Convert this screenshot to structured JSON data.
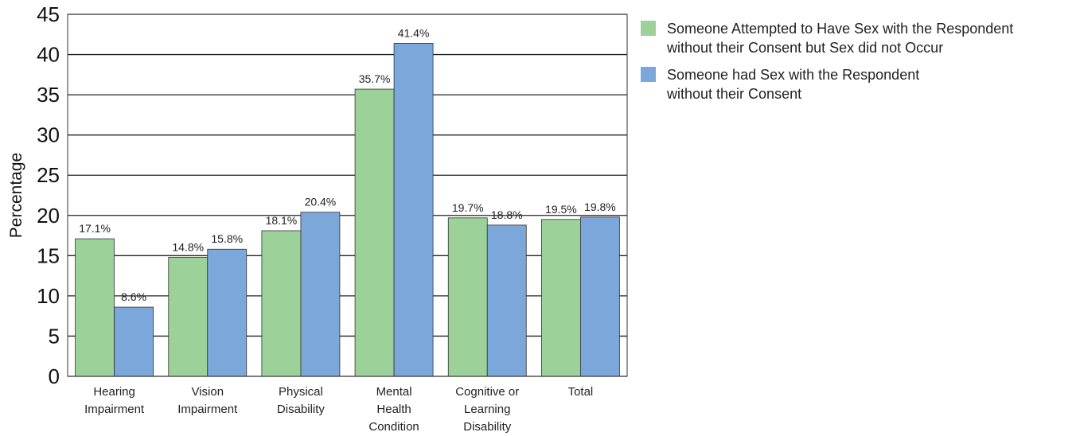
{
  "chart_data": {
    "type": "bar",
    "ylabel": "Percentage",
    "ylim": [
      0,
      45
    ],
    "yticks": [
      0,
      5,
      10,
      15,
      20,
      25,
      30,
      35,
      40,
      45
    ],
    "grid": true,
    "legend_position": "right",
    "categories": [
      [
        "Hearing",
        "Impairment"
      ],
      [
        "Vision",
        "Impairment"
      ],
      [
        "Physical",
        "Disability"
      ],
      [
        "Mental",
        "Health",
        "Condition"
      ],
      [
        "Cognitive or",
        "Learning",
        "Disability"
      ],
      [
        "Total"
      ]
    ],
    "series": [
      {
        "name": "Someone Attempted to Have Sex with the Respondent without their Consent but Sex did not Occur",
        "legend_lines": [
          "Someone Attempted to Have Sex with the Respondent",
          "without their Consent but Sex did not Occur"
        ],
        "color": "#9cd29a",
        "values": [
          17.1,
          14.8,
          18.1,
          35.7,
          19.7,
          19.5
        ],
        "labels": [
          "17.1%",
          "14.8%",
          "18.1%",
          "35.7%",
          "19.7%",
          "19.5%"
        ]
      },
      {
        "name": "Someone had Sex with the Respondent without their Consent",
        "legend_lines": [
          "Someone had Sex with the Respondent",
          "without their Consent"
        ],
        "color": "#7ba7db",
        "values": [
          8.6,
          15.8,
          20.4,
          41.4,
          18.8,
          19.8
        ],
        "labels": [
          "8.6%",
          "15.8%",
          "20.4%",
          "41.4%",
          "18.8%",
          "19.8%"
        ]
      }
    ]
  }
}
